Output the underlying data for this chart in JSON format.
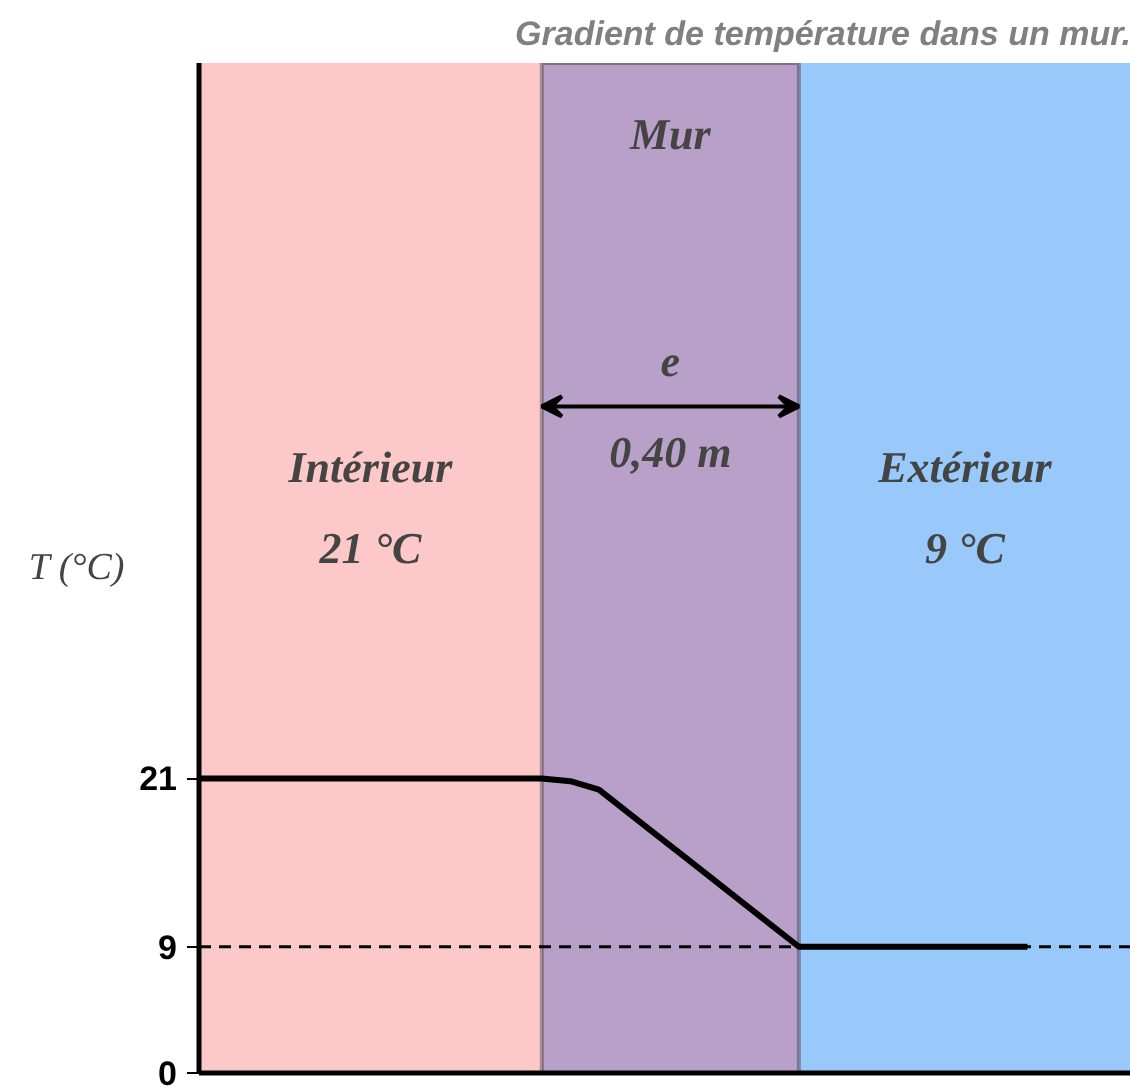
{
  "chart_data": {
    "type": "line",
    "title": "Gradient de température dans un mur.",
    "ylabel": "T (°C)",
    "categories": [
      null,
      null,
      null,
      null,
      null,
      null,
      null,
      null,
      null,
      null,
      null,
      null,
      null,
      null,
      null,
      null,
      null,
      null,
      null,
      null,
      null,
      null,
      null,
      null,
      null,
      null,
      null,
      null,
      null,
      null
    ],
    "series": [
      {
        "color": "#000000",
        "values": [
          21,
          21,
          21,
          21,
          21,
          21,
          21,
          21,
          21,
          21,
          21,
          21,
          21,
          20.8,
          20.2,
          18.6,
          17.0,
          15.4,
          13.8,
          12.2,
          10.6,
          9,
          9,
          9,
          9,
          9,
          9,
          9,
          9,
          9
        ]
      }
    ],
    "ylim": [
      0,
      72
    ],
    "yticks": [
      0,
      9,
      21
    ],
    "tick_labels": "y",
    "line_style": "solid",
    "ref_lines": [
      {
        "axis": "y",
        "value": 9,
        "line_style": "dashed",
        "color": "#000000"
      }
    ],
    "annotations": [
      "Mur",
      "Intérieur\n21 °C",
      "Extérieur\n9 °C",
      "e",
      "0,40 m"
    ]
  }
}
